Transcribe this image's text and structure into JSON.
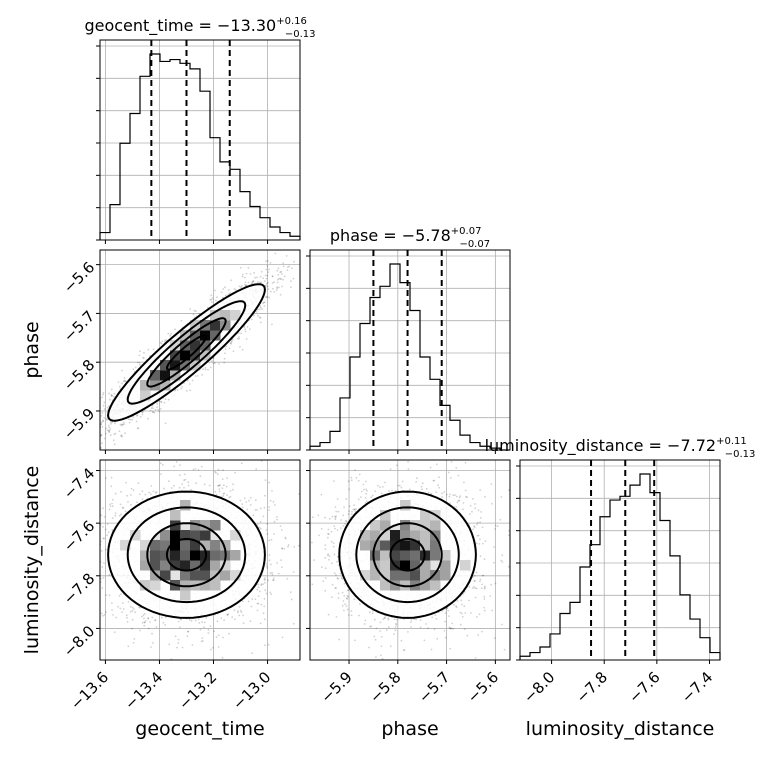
{
  "chart_data": {
    "type": "corner",
    "parameters": [
      {
        "name": "geocent_time",
        "label": "geocent_time",
        "title_main": "geocent_time = −13.30",
        "title_sup": "+0.16",
        "title_sub": "−0.13",
        "median": -13.3,
        "q16": -13.43,
        "q84": -13.14,
        "range": [
          -13.62,
          -12.88
        ],
        "ticks": [
          -13.6,
          -13.4,
          -13.2,
          -13.0
        ],
        "tick_labels": [
          "−13.6",
          "−13.4",
          "−13.2",
          "−13.0"
        ],
        "hist_edges_start": -13.62,
        "hist_bin_width": 0.037,
        "hist_counts": [
          4,
          19,
          52,
          68,
          88,
          100,
          96,
          97,
          95,
          92,
          80,
          55,
          42,
          38,
          26,
          18,
          12,
          7,
          4,
          2
        ]
      },
      {
        "name": "phase",
        "label": "phase",
        "title_main": "phase = −5.78",
        "title_sup": "+0.07",
        "title_sub": "−0.07",
        "median": -5.78,
        "q16": -5.85,
        "q84": -5.71,
        "range": [
          -5.98,
          -5.57
        ],
        "ticks": [
          -5.9,
          -5.8,
          -5.7,
          -5.6
        ],
        "tick_labels": [
          "−5.9",
          "−5.8",
          "−5.7",
          "−5.6"
        ],
        "hist_edges_start": -5.98,
        "hist_bin_width": 0.0205,
        "hist_counts": [
          2,
          4,
          10,
          28,
          50,
          68,
          82,
          88,
          100,
          90,
          75,
          50,
          38,
          24,
          16,
          8,
          4,
          2,
          1,
          0
        ]
      },
      {
        "name": "luminosity_distance",
        "label": "luminosity_distance",
        "title_main": "luminosity_distance = −7.72",
        "title_sup": "+0.11",
        "title_sub": "−0.13",
        "median": -7.72,
        "q16": -7.85,
        "q84": -7.61,
        "range": [
          -8.12,
          -7.36
        ],
        "ticks": [
          -8.0,
          -7.8,
          -7.6,
          -7.4
        ],
        "tick_labels": [
          "−8.0",
          "−7.8",
          "−7.6",
          "−7.4"
        ],
        "hist_edges_start": -8.12,
        "hist_bin_width": 0.038,
        "hist_counts": [
          2,
          4,
          7,
          14,
          25,
          31,
          50,
          62,
          77,
          86,
          88,
          94,
          100,
          90,
          75,
          56,
          35,
          22,
          12,
          4
        ]
      }
    ],
    "scatter_panels": [
      {
        "x": "geocent_time",
        "y": "phase",
        "yticks": [
          -5.9,
          -5.8,
          -5.7,
          -5.6
        ],
        "ytick_labels": [
          "−5.9",
          "−5.8",
          "−5.7",
          "−5.6"
        ],
        "correlation": 0.92
      },
      {
        "x": "geocent_time",
        "y": "luminosity_distance",
        "yticks": [
          -8.0,
          -7.8,
          -7.6,
          -7.4
        ],
        "ytick_labels": [
          "−8.0",
          "−7.8",
          "−7.6",
          "−7.4"
        ],
        "correlation": 0.0
      },
      {
        "x": "phase",
        "y": "luminosity_distance",
        "correlation": 0.0
      }
    ],
    "grid": true
  }
}
